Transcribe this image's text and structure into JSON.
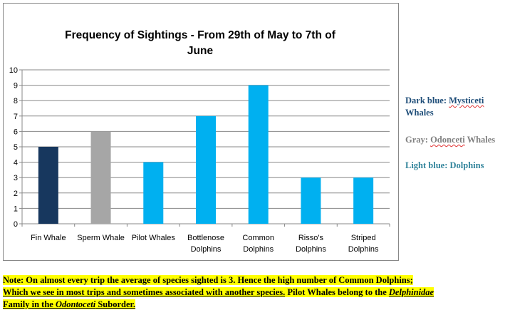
{
  "chart_data": {
    "type": "bar",
    "title": "Frequency of Sightings - From 29th of May to 7th of June",
    "title_lines": [
      "Frequency of Sightings - From 29th of May to 7th of",
      "June"
    ],
    "categories": [
      "Fin Whale",
      "Sperm Whale",
      "Pilot Whales",
      "Bottlenose Dolphins",
      "Common Dolphins",
      "Risso's Dolphins",
      "Striped Dolphins"
    ],
    "category_lines": [
      [
        "Fin Whale"
      ],
      [
        "Sperm Whale"
      ],
      [
        "Pilot Whales"
      ],
      [
        "Bottlenose",
        "Dolphins"
      ],
      [
        "Common",
        "Dolphins"
      ],
      [
        "Risso's",
        "Dolphins"
      ],
      [
        "Striped",
        "Dolphins"
      ]
    ],
    "values": [
      5,
      6,
      4,
      7,
      9,
      3,
      3
    ],
    "bar_colors": [
      "#17375e",
      "#a6a6a6",
      "#00b0f0",
      "#00b0f0",
      "#00b0f0",
      "#00b0f0",
      "#00b0f0"
    ],
    "ylim": [
      0,
      10
    ],
    "yticks": [
      0,
      1,
      2,
      3,
      4,
      5,
      6,
      7,
      8,
      9,
      10
    ],
    "grid": true,
    "xlabel": "",
    "ylabel": ""
  },
  "legend_notes": {
    "dark_blue_prefix": "Dark blue: ",
    "dark_blue_term": "Mysticeti",
    "dark_blue_suffix": "Whales",
    "dark_blue_color": "#1f4e79",
    "gray_prefix": "Gray: ",
    "gray_term": "Odonceti",
    "gray_suffix": " Whales",
    "gray_color": "#808080",
    "light_blue_text": "Light blue: Dolphins",
    "light_blue_color": "#31849b"
  },
  "footnote": {
    "line1": "Note: On almost every trip the average of species sighted is 3. Hence the high number of Common Dolphins;",
    "line2a": "Which we see in most trips and sometimes associated with another species.",
    "line2b": " Pilot Whales belong to the ",
    "line2c": "Delphinidae",
    "line3a": "Family in the ",
    "line3b": "Odontoceti",
    "line3c": " Suborder."
  }
}
